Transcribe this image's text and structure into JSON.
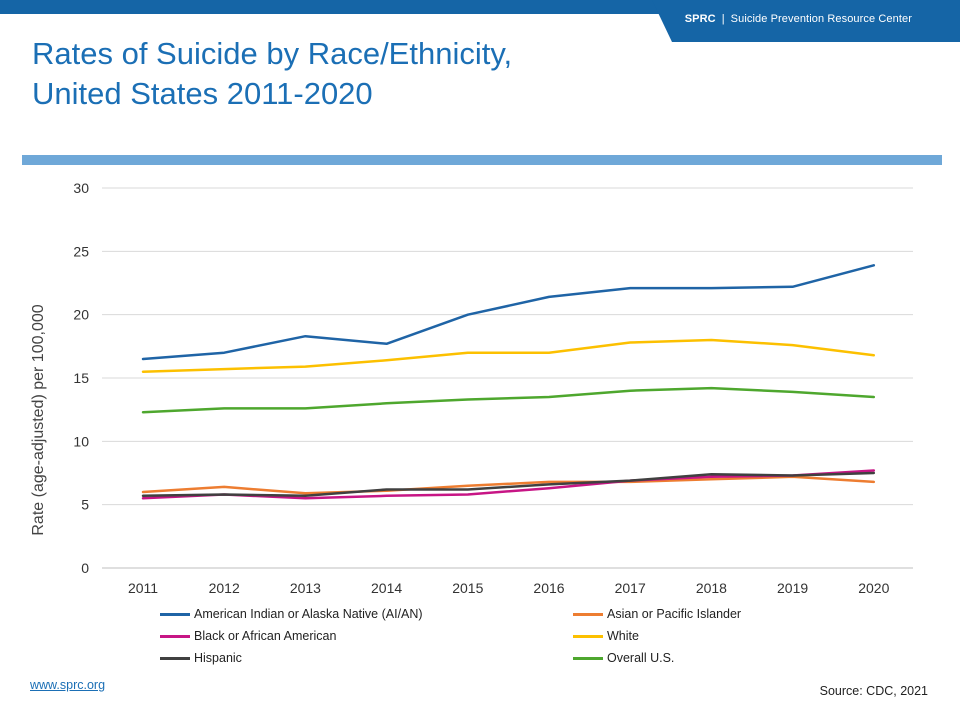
{
  "header": {
    "org_abbr": "SPRC",
    "separator": "|",
    "org_name": "Suicide Prevention Resource Center"
  },
  "slide": {
    "title_line1": "Rates of Suicide by Race/Ethnicity,",
    "title_line2": "United States 2011-2020"
  },
  "colors": {
    "header_blue": "#1565a6",
    "title_blue": "#1b6fb5",
    "divider_blue": "#6fa8d8",
    "grid": "#d9d9d9"
  },
  "chart_data": {
    "type": "line",
    "title": "",
    "xlabel": "",
    "ylabel": "Rate (age-adjusted) per 100,000",
    "ylim": [
      0,
      30
    ],
    "yticks": [
      0,
      5,
      10,
      15,
      20,
      25,
      30
    ],
    "x": [
      "2011",
      "2012",
      "2013",
      "2014",
      "2015",
      "2016",
      "2017",
      "2018",
      "2019",
      "2020"
    ],
    "grid": true,
    "legend_position": "bottom",
    "series": [
      {
        "name": "American Indian or Alaska Native (AI/AN)",
        "color": "#1f64a6",
        "values": [
          16.5,
          17.0,
          18.3,
          17.7,
          20.0,
          21.4,
          22.1,
          22.1,
          22.2,
          23.9
        ]
      },
      {
        "name": "Asian or Pacific Islander",
        "color": "#ed7d31",
        "values": [
          6.0,
          6.4,
          5.9,
          6.1,
          6.5,
          6.8,
          6.8,
          7.0,
          7.2,
          6.8
        ]
      },
      {
        "name": "Black or African American",
        "color": "#c71585",
        "values": [
          5.5,
          5.8,
          5.5,
          5.7,
          5.8,
          6.3,
          6.9,
          7.2,
          7.3,
          7.7
        ]
      },
      {
        "name": "White",
        "color": "#fcc000",
        "values": [
          15.5,
          15.7,
          15.9,
          16.4,
          17.0,
          17.0,
          17.8,
          18.0,
          17.6,
          16.8
        ]
      },
      {
        "name": "Hispanic",
        "color": "#404040",
        "values": [
          5.7,
          5.8,
          5.7,
          6.2,
          6.2,
          6.6,
          6.9,
          7.4,
          7.3,
          7.5
        ]
      },
      {
        "name": "Overall U.S.",
        "color": "#4ea72e",
        "values": [
          12.3,
          12.6,
          12.6,
          13.0,
          13.3,
          13.5,
          14.0,
          14.2,
          13.9,
          13.5
        ]
      }
    ]
  },
  "footer": {
    "website": "www.sprc.org",
    "source": "Source: CDC, 2021"
  }
}
